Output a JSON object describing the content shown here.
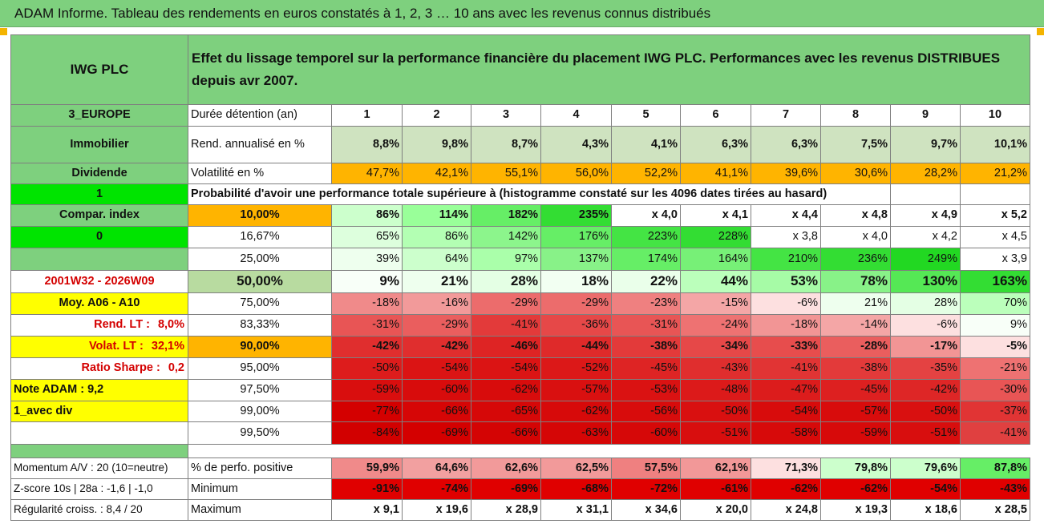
{
  "title": "ADAM Informe. Tableau des rendements en euros constatés à 1, 2, 3 … 10 ans avec les revenus connus distribués",
  "header": {
    "company": "IWG PLC",
    "description": "Effet du lissage temporel sur la performance financière du placement IWG PLC. Performances avec les revenus DISTRIBUES depuis avr 2007."
  },
  "labels": {
    "region": "3_EUROPE",
    "sector": "Immobilier",
    "dividend": "Dividende",
    "one": "1",
    "compar": "Compar. index",
    "zero": "0",
    "blank": "",
    "period": "2001W32 - 2026W09",
    "moy": "Moy. A06 - A10",
    "rend_lt_label": "Rend. LT :",
    "rend_lt_value": "8,0%",
    "volat_lt_label": "Volat. LT :",
    "volat_lt_value": "32,1%",
    "sharpe_label": "Ratio Sharpe :",
    "sharpe_value": "0,2",
    "note": "Note ADAM : 9,2",
    "avec_div": "1_avec div"
  },
  "duration_label": "Durée détention (an)",
  "durations": [
    "1",
    "2",
    "3",
    "4",
    "5",
    "6",
    "7",
    "8",
    "9",
    "10"
  ],
  "rend_label": "Rend. annualisé en %",
  "rend": [
    "8,8%",
    "9,8%",
    "8,7%",
    "4,3%",
    "4,1%",
    "6,3%",
    "6,3%",
    "7,5%",
    "9,7%",
    "10,1%"
  ],
  "vol_label": "Volatilité en %",
  "vol": [
    "47,7%",
    "42,1%",
    "55,1%",
    "56,0%",
    "52,2%",
    "41,1%",
    "39,6%",
    "30,6%",
    "28,2%",
    "21,2%"
  ],
  "prob_text": "Probabilité d'avoir une performance totale supérieure à (histogramme constaté sur les 4096 dates tirées au hasard)",
  "prob_rows": [
    {
      "threshold": "10,00%",
      "values": [
        "86%",
        "114%",
        "182%",
        "235%",
        "x 4,0",
        "x 4,1",
        "x 4,4",
        "x 4,8",
        "x 4,9",
        "x 5,2"
      ]
    },
    {
      "threshold": "16,67%",
      "values": [
        "65%",
        "86%",
        "142%",
        "176%",
        "223%",
        "228%",
        "x 3,8",
        "x 4,0",
        "x 4,2",
        "x 4,5"
      ]
    },
    {
      "threshold": "25,00%",
      "values": [
        "39%",
        "64%",
        "97%",
        "137%",
        "174%",
        "164%",
        "210%",
        "236%",
        "249%",
        "x 3,9"
      ]
    },
    {
      "threshold": "50,00%",
      "values": [
        "9%",
        "21%",
        "28%",
        "18%",
        "22%",
        "44%",
        "53%",
        "78%",
        "130%",
        "163%"
      ]
    },
    {
      "threshold": "75,00%",
      "values": [
        "-18%",
        "-16%",
        "-29%",
        "-29%",
        "-23%",
        "-15%",
        "-6%",
        "21%",
        "28%",
        "70%"
      ]
    },
    {
      "threshold": "83,33%",
      "values": [
        "-31%",
        "-29%",
        "-41%",
        "-36%",
        "-31%",
        "-24%",
        "-18%",
        "-14%",
        "-6%",
        "9%"
      ]
    },
    {
      "threshold": "90,00%",
      "values": [
        "-42%",
        "-42%",
        "-46%",
        "-44%",
        "-38%",
        "-34%",
        "-33%",
        "-28%",
        "-17%",
        "-5%"
      ]
    },
    {
      "threshold": "95,00%",
      "values": [
        "-50%",
        "-54%",
        "-54%",
        "-52%",
        "-45%",
        "-43%",
        "-41%",
        "-38%",
        "-35%",
        "-21%"
      ]
    },
    {
      "threshold": "97,50%",
      "values": [
        "-59%",
        "-60%",
        "-62%",
        "-57%",
        "-53%",
        "-48%",
        "-47%",
        "-45%",
        "-42%",
        "-30%"
      ]
    },
    {
      "threshold": "99,00%",
      "values": [
        "-77%",
        "-66%",
        "-65%",
        "-62%",
        "-56%",
        "-50%",
        "-54%",
        "-57%",
        "-50%",
        "-37%"
      ]
    },
    {
      "threshold": "99,50%",
      "values": [
        "-84%",
        "-69%",
        "-66%",
        "-63%",
        "-60%",
        "-51%",
        "-58%",
        "-59%",
        "-51%",
        "-41%"
      ]
    }
  ],
  "footer": [
    {
      "left": "Momentum A/V : 20 (10=neutre)",
      "label": "% de perfo. positive",
      "values": [
        "59,9%",
        "64,6%",
        "62,6%",
        "62,5%",
        "57,5%",
        "62,1%",
        "71,3%",
        "79,8%",
        "79,6%",
        "87,8%"
      ]
    },
    {
      "left": "Z-score 10s | 28a : -1,6 | -1,0",
      "label": "Minimum",
      "values": [
        "-91%",
        "-74%",
        "-69%",
        "-68%",
        "-72%",
        "-61%",
        "-62%",
        "-62%",
        "-54%",
        "-43%"
      ]
    },
    {
      "left": "Régularité croiss. : 8,4 / 20",
      "label": "Maximum",
      "values": [
        "x 9,1",
        "x 19,6",
        "x 28,9",
        "x 31,1",
        "x 34,6",
        "x 20,0",
        "x 24,8",
        "x 19,3",
        "x 18,6",
        "x 28,5"
      ]
    }
  ],
  "colors": {
    "header_green": "#7ed07e",
    "rend_bg": "#cfe3c0",
    "vol_bg": "#ffb400",
    "highlight_yellow": "#ffff00",
    "bright_green": "#00e400",
    "label_red": "#d40000"
  },
  "cell_colors": {
    "prob_rows": [
      [
        "#ccffcc",
        "#99ff99",
        "#66ee66",
        "#33dd33",
        "#ffffff",
        "#ffffff",
        "#ffffff",
        "#ffffff",
        "#ffffff",
        "#ffffff"
      ],
      [
        "#ddffdd",
        "#b3ffb3",
        "#8cf58c",
        "#66ee66",
        "#44e444",
        "#33dd33",
        "#ffffff",
        "#ffffff",
        "#ffffff",
        "#ffffff"
      ],
      [
        "#eeffee",
        "#ccffcc",
        "#aaffaa",
        "#88f288",
        "#66ee66",
        "#77f077",
        "#44e444",
        "#33dd33",
        "#22d822",
        "#ffffff"
      ],
      [
        "#f8fff8",
        "#eeffee",
        "#e4ffe4",
        "#f2fff2",
        "#eaffea",
        "#bbffbb",
        "#a6fba6",
        "#88f288",
        "#55e855",
        "#33dd33"
      ],
      [
        "#f08a8a",
        "#f29a9a",
        "#ec6c6c",
        "#ec6c6c",
        "#ef8080",
        "#f4a6a6",
        "#fde0e0",
        "#eeffee",
        "#e4ffe4",
        "#bbffbb"
      ],
      [
        "#e85555",
        "#ea5e5e",
        "#e33a3a",
        "#e64848",
        "#e85555",
        "#ee7272",
        "#f29595",
        "#f4a6a6",
        "#fde0e0",
        "#f8fff8"
      ],
      [
        "#e02e2e",
        "#e02e2e",
        "#de2424",
        "#df2a2a",
        "#e33a3a",
        "#e64848",
        "#e74d4d",
        "#ea5e5e",
        "#f29595",
        "#fde0e0"
      ],
      [
        "#dd1c1c",
        "#db1414",
        "#db1414",
        "#dc1818",
        "#de2424",
        "#e02e2e",
        "#e13434",
        "#e33a3a",
        "#e44242",
        "#ee7272"
      ],
      [
        "#d90e0e",
        "#d80c0c",
        "#d80c0c",
        "#d91010",
        "#da1212",
        "#dc1a1a",
        "#dc1c1c",
        "#dd2020",
        "#de2626",
        "#e85555"
      ],
      [
        "#d40000",
        "#d60606",
        "#d60808",
        "#d70a0a",
        "#d80c0c",
        "#d91010",
        "#d80c0c",
        "#d80c0c",
        "#d91010",
        "#e13434"
      ],
      [
        "#d20000",
        "#d40000",
        "#d40404",
        "#d50606",
        "#d60808",
        "#d80e0e",
        "#d70a0a",
        "#d70a0a",
        "#d80e0e",
        "#e04040"
      ]
    ],
    "footer": [
      [
        "#f08a8a",
        "#f2a0a0",
        "#f29a9a",
        "#f29a9a",
        "#ef8080",
        "#f29898",
        "#fde0e0",
        "#ccffcc",
        "#ccffcc",
        "#66ee66"
      ],
      [
        "#e00000",
        "#e00000",
        "#e00000",
        "#e00000",
        "#e00000",
        "#e00000",
        "#e00000",
        "#e00000",
        "#e00000",
        "#e00000"
      ],
      [
        "#ffffff",
        "#ffffff",
        "#ffffff",
        "#ffffff",
        "#ffffff",
        "#ffffff",
        "#ffffff",
        "#ffffff",
        "#ffffff",
        "#ffffff"
      ]
    ]
  }
}
